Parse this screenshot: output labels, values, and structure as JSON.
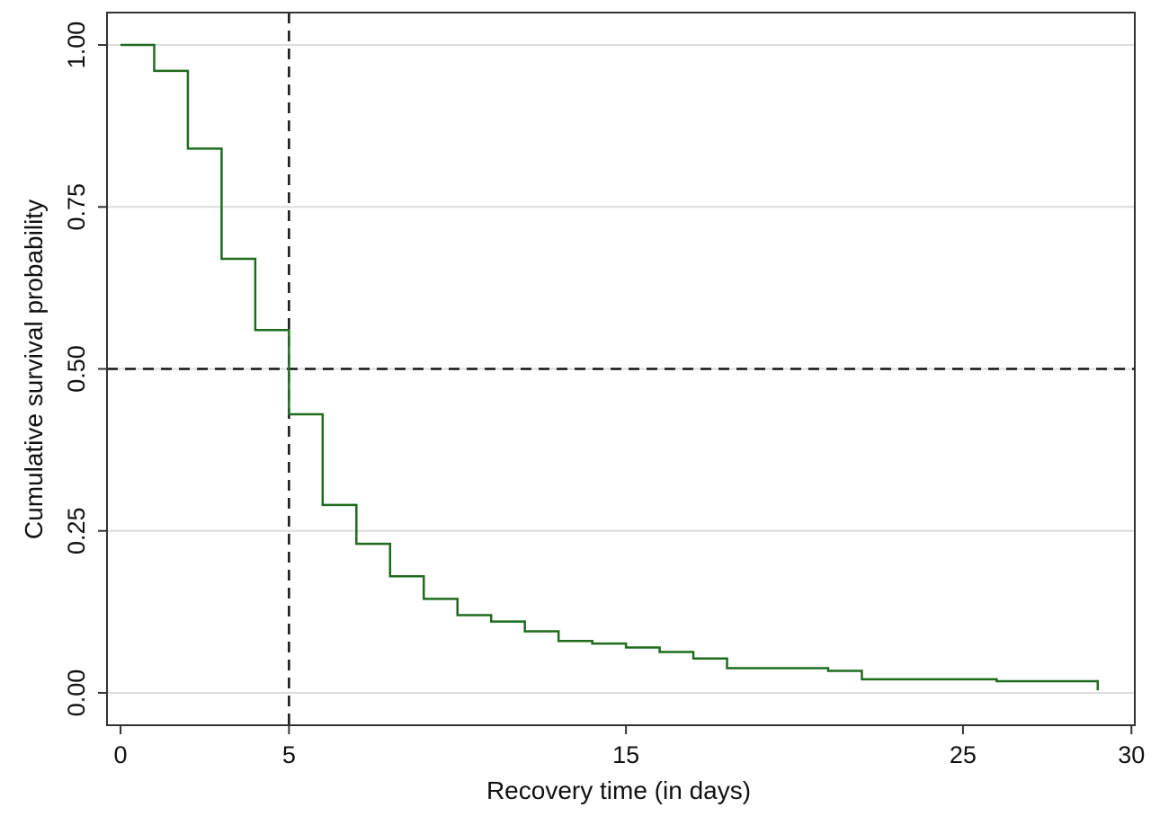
{
  "chart_data": {
    "type": "line",
    "title": "",
    "xlabel": "Recovery time (in days)",
    "ylabel": "Cumulative survival probability",
    "xlim": [
      -0.4,
      30.1
    ],
    "ylim": [
      -0.05,
      1.05
    ],
    "x_ticks": [
      {
        "value": 0,
        "label": "0"
      },
      {
        "value": 5,
        "label": "5"
      },
      {
        "value": 15,
        "label": "15"
      },
      {
        "value": 25,
        "label": "25"
      },
      {
        "value": 30,
        "label": "30"
      }
    ],
    "y_ticks": [
      {
        "value": 0,
        "label": "0.00"
      },
      {
        "value": 0.25,
        "label": "0.25"
      },
      {
        "value": 0.5,
        "label": "0.50"
      },
      {
        "value": 0.75,
        "label": "0.75"
      },
      {
        "value": 1,
        "label": "1.00"
      }
    ],
    "grid": true,
    "step": true,
    "series": [
      {
        "color": "#1e6b1e",
        "x": [
          0,
          1,
          2,
          3,
          4,
          5,
          6,
          7,
          8,
          9,
          10,
          11,
          12,
          13,
          14,
          15,
          16,
          17,
          18,
          19,
          20,
          21,
          22,
          23,
          24,
          25,
          26,
          27,
          28,
          29
        ],
        "y": [
          1.0,
          0.96,
          0.84,
          0.67,
          0.56,
          0.43,
          0.29,
          0.23,
          0.18,
          0.145,
          0.12,
          0.11,
          0.095,
          0.08,
          0.076,
          0.07,
          0.063,
          0.053,
          0.038,
          0.038,
          0.038,
          0.034,
          0.021,
          0.021,
          0.021,
          0.021,
          0.018,
          0.018,
          0.018,
          0.004
        ]
      }
    ],
    "reference_lines": [
      {
        "orientation": "vertical",
        "value": 5,
        "style": "dashed"
      },
      {
        "orientation": "horizontal",
        "value": 0.5,
        "style": "dashed"
      }
    ]
  }
}
